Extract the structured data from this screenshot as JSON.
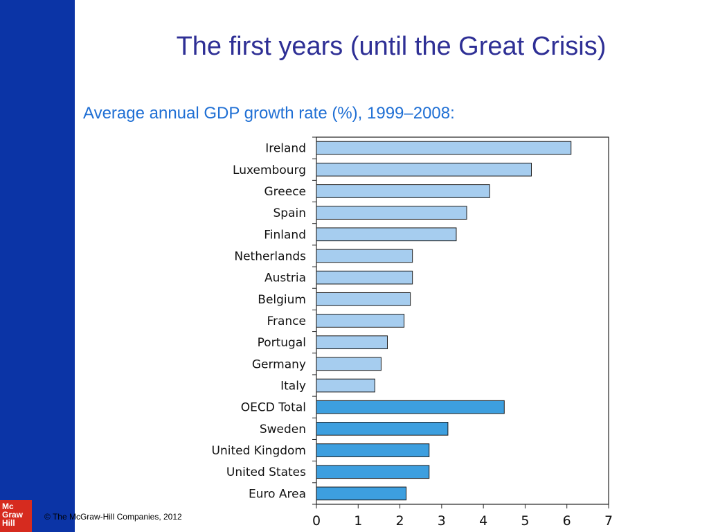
{
  "slide": {
    "title": "The first years (until the Great Crisis)",
    "caption": "Average annual GDP growth rate (%), 1999–2008:",
    "copyright": "© The McGraw-Hill Companies, 2012",
    "logo_lines": [
      "Mc",
      "Graw",
      "Hill"
    ]
  },
  "colors": {
    "sidebar": "#0b34a6",
    "title": "#2e2f95",
    "caption": "#1f6fd4",
    "bar_light": "#a6cdef",
    "bar_dark": "#3d9fdf",
    "logo": "#d62b1f"
  },
  "chart_data": {
    "type": "bar",
    "orientation": "horizontal",
    "title": "",
    "xlabel": "",
    "ylabel": "",
    "xlim": [
      0,
      7
    ],
    "x_ticks": [
      0,
      1,
      2,
      3,
      4,
      5,
      6,
      7
    ],
    "grid": false,
    "categories": [
      "Ireland",
      "Luxembourg",
      "Greece",
      "Spain",
      "Finland",
      "Netherlands",
      "Austria",
      "Belgium",
      "France",
      "Portugal",
      "Germany",
      "Italy",
      "OECD Total",
      "Sweden",
      "United Kingdom",
      "United States",
      "Euro Area"
    ],
    "values": [
      6.1,
      5.15,
      4.15,
      3.6,
      3.35,
      2.3,
      2.3,
      2.25,
      2.1,
      1.7,
      1.55,
      1.4,
      4.5,
      3.15,
      2.7,
      2.7,
      2.15
    ],
    "groups": [
      "light",
      "light",
      "light",
      "light",
      "light",
      "light",
      "light",
      "light",
      "light",
      "light",
      "light",
      "light",
      "dark",
      "dark",
      "dark",
      "dark",
      "dark"
    ]
  }
}
